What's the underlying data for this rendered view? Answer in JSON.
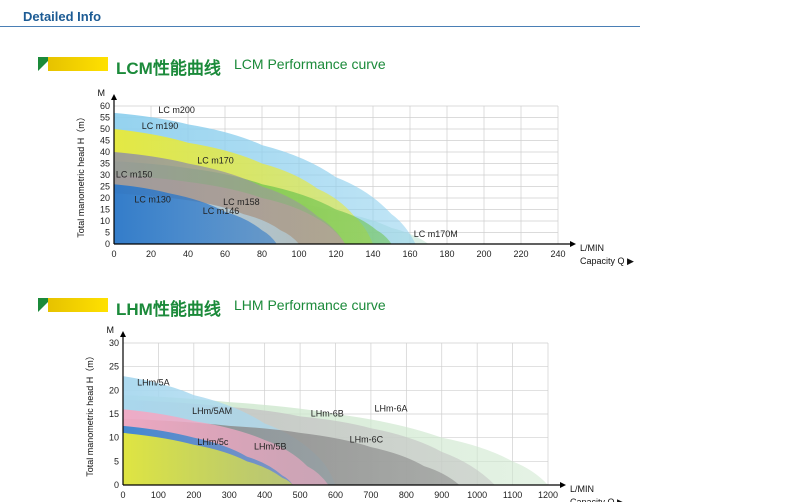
{
  "header": {
    "title": "Detailed Info"
  },
  "charts": [
    {
      "title_cn": "LCM性能曲线",
      "title_en": "LCM Performance curve",
      "ylabel": "Total manometric head H（m）",
      "yunit": "M",
      "xunit": "L/MIN",
      "xcaption": "Capacity Q ▶",
      "chart_data": {
        "type": "area",
        "xlabel": "Capacity Q",
        "ylabel": "Total manometric head H (m)",
        "xlim": [
          0,
          240
        ],
        "ylim": [
          0,
          60
        ],
        "xticks": [
          0,
          20,
          40,
          60,
          80,
          100,
          120,
          140,
          160,
          180,
          200,
          220,
          240
        ],
        "yticks": [
          0,
          5,
          10,
          15,
          20,
          25,
          30,
          35,
          40,
          45,
          50,
          55,
          60
        ],
        "grid": true,
        "series": [
          {
            "name": "LC m170M",
            "color": "#bfe3d2",
            "points": [
              [
                0,
                26
              ],
              [
                40,
                24
              ],
              [
                80,
                20
              ],
              [
                120,
                14
              ],
              [
                150,
                7
              ],
              [
                170,
                0
              ]
            ]
          },
          {
            "name": "LC m200",
            "color": "#8fd0ee",
            "points": [
              [
                0,
                57
              ],
              [
                40,
                52
              ],
              [
                80,
                43
              ],
              [
                120,
                29
              ],
              [
                150,
                13
              ],
              [
                163,
                0
              ]
            ]
          },
          {
            "name": "LC m190",
            "color": "#e8ea3a",
            "points": [
              [
                0,
                50
              ],
              [
                40,
                44
              ],
              [
                80,
                35
              ],
              [
                110,
                24
              ],
              [
                130,
                12
              ],
              [
                140,
                0
              ]
            ]
          },
          {
            "name": "LC m170",
            "color": "#6fc44e",
            "points": [
              [
                0,
                36
              ],
              [
                40,
                33
              ],
              [
                80,
                26
              ],
              [
                120,
                15
              ],
              [
                142,
                6
              ],
              [
                150,
                0
              ]
            ]
          },
          {
            "name": "LC m158",
            "color": "#f2a3a3",
            "points": [
              [
                0,
                30
              ],
              [
                40,
                27
              ],
              [
                80,
                20
              ],
              [
                110,
                11
              ],
              [
                125,
                0
              ]
            ]
          },
          {
            "name": "LC m150",
            "color": "#9a9a9a",
            "points": [
              [
                0,
                40
              ],
              [
                40,
                35
              ],
              [
                80,
                25
              ],
              [
                110,
                12
              ],
              [
                125,
                0
              ]
            ]
          },
          {
            "name": "LC m146",
            "color": "#b5d7e8",
            "points": [
              [
                0,
                22
              ],
              [
                40,
                19
              ],
              [
                70,
                13
              ],
              [
                90,
                6
              ],
              [
                100,
                0
              ]
            ]
          },
          {
            "name": "LC m130",
            "color": "#2d78c8",
            "points": [
              [
                0,
                26
              ],
              [
                30,
                22
              ],
              [
                60,
                14
              ],
              [
                80,
                6
              ],
              [
                88,
                0
              ]
            ]
          }
        ],
        "labels": [
          {
            "text": "LC m200",
            "x": 24,
            "y": 57
          },
          {
            "text": "LC m190",
            "x": 15,
            "y": 50
          },
          {
            "text": "LC m170",
            "x": 45,
            "y": 35
          },
          {
            "text": "LC m150",
            "x": 1,
            "y": 29
          },
          {
            "text": "LC m158",
            "x": 59,
            "y": 17
          },
          {
            "text": "LC m130",
            "x": 11,
            "y": 18
          },
          {
            "text": "LC m146",
            "x": 48,
            "y": 13
          },
          {
            "text": "LC m170M",
            "x": 162,
            "y": 3
          }
        ]
      }
    },
    {
      "title_cn": "LHM性能曲线",
      "title_en": "LHM Performance curve",
      "ylabel": "Total manometric head H（m）",
      "yunit": "M",
      "xunit": "L/MIN",
      "xcaption": "Capacity Q ▶",
      "chart_data": {
        "type": "area",
        "xlabel": "Capacity Q",
        "ylabel": "Total manometric head H (m)",
        "xlim": [
          0,
          1200
        ],
        "ylim": [
          0,
          30
        ],
        "xticks": [
          0,
          100,
          200,
          300,
          400,
          500,
          600,
          700,
          800,
          900,
          1000,
          1100,
          1200
        ],
        "yticks": [
          0,
          5,
          10,
          15,
          20,
          25,
          30
        ],
        "grid": true,
        "series": [
          {
            "name": "LHm-6A",
            "color": "#cfe8cf",
            "points": [
              [
                0,
                19
              ],
              [
                300,
                17.5
              ],
              [
                600,
                15
              ],
              [
                900,
                10
              ],
              [
                1100,
                5
              ],
              [
                1200,
                0
              ]
            ]
          },
          {
            "name": "LHm-6B",
            "color": "#c4c4c4",
            "points": [
              [
                0,
                18
              ],
              [
                300,
                16.5
              ],
              [
                500,
                14.5
              ],
              [
                700,
                12
              ],
              [
                900,
                7
              ],
              [
                1050,
                0
              ]
            ]
          },
          {
            "name": "LHm/5A",
            "color": "#a8d8ef",
            "points": [
              [
                0,
                23
              ],
              [
                200,
                19
              ],
              [
                400,
                13
              ],
              [
                550,
                6
              ],
              [
                600,
                0
              ]
            ]
          },
          {
            "name": "LHm-6C",
            "color": "#8a8a8a",
            "points": [
              [
                0,
                14
              ],
              [
                300,
                12.5
              ],
              [
                500,
                11
              ],
              [
                700,
                8
              ],
              [
                850,
                4
              ],
              [
                950,
                0
              ]
            ]
          },
          {
            "name": "LHm/5AM",
            "color": "#f2a9c4",
            "points": [
              [
                0,
                16
              ],
              [
                200,
                13.5
              ],
              [
                400,
                9.5
              ],
              [
                520,
                4
              ],
              [
                580,
                0
              ]
            ]
          },
          {
            "name": "LHm/5B",
            "color": "#3a86d0",
            "points": [
              [
                0,
                12.5
              ],
              [
                200,
                10
              ],
              [
                350,
                6
              ],
              [
                450,
                2
              ],
              [
                480,
                0
              ]
            ]
          },
          {
            "name": "LHm/5c",
            "color": "#e8ea3a",
            "points": [
              [
                0,
                11
              ],
              [
                200,
                8.5
              ],
              [
                350,
                5
              ],
              [
                450,
                1.5
              ],
              [
                480,
                0
              ]
            ]
          }
        ],
        "labels": [
          {
            "text": "LHm/5A",
            "x": 40,
            "y": 21
          },
          {
            "text": "LHm/5AM",
            "x": 195,
            "y": 15
          },
          {
            "text": "LHm-6B",
            "x": 530,
            "y": 14.5
          },
          {
            "text": "LHm-6A",
            "x": 710,
            "y": 15.5
          },
          {
            "text": "LHm-6C",
            "x": 640,
            "y": 9
          },
          {
            "text": "LHm/5c",
            "x": 210,
            "y": 8.5
          },
          {
            "text": "LHm/5B",
            "x": 370,
            "y": 7.5
          }
        ]
      }
    }
  ]
}
